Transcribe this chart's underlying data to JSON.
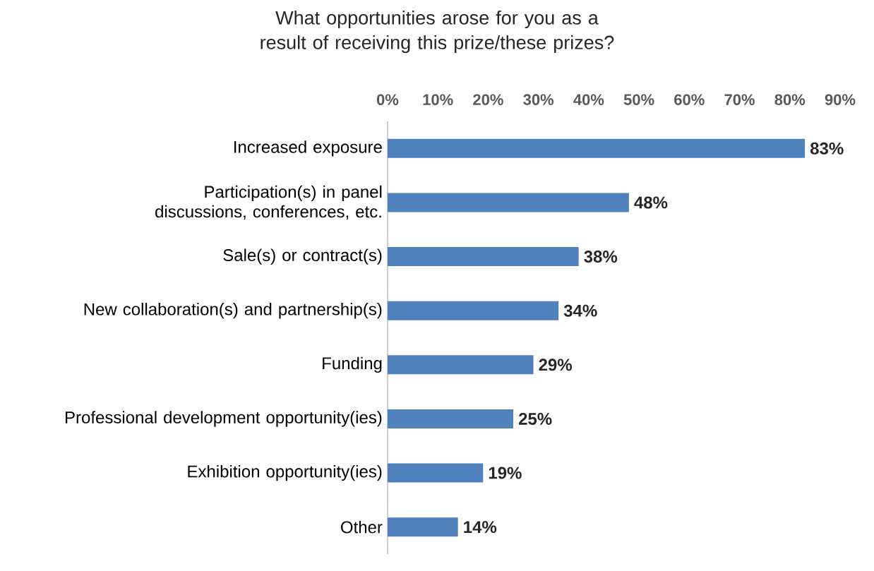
{
  "chart_data": {
    "type": "bar",
    "orientation": "horizontal",
    "title": "What opportunities arose for you as a result of receiving this prize/these prizes?",
    "categories": [
      "Increased exposure",
      "Participation(s) in panel discussions, conferences, etc.",
      "Sale(s) or contract(s)",
      "New collaboration(s) and partnership(s)",
      "Funding",
      "Professional development opportunity(ies)",
      "Exhibition opportunity(ies)",
      "Other"
    ],
    "values": [
      83,
      48,
      38,
      34,
      29,
      25,
      19,
      14
    ],
    "color": "#4f81bd",
    "value_labels": [
      "83%",
      "48%",
      "38%",
      "34%",
      "29%",
      "25%",
      "19%",
      "14%"
    ],
    "xlim": [
      0,
      90
    ],
    "xticks": [
      {
        "value": 0,
        "label": "0%"
      },
      {
        "value": 10,
        "label": "10%"
      },
      {
        "value": 20,
        "label": "20%"
      },
      {
        "value": 30,
        "label": "30%"
      },
      {
        "value": 40,
        "label": "40%"
      },
      {
        "value": 50,
        "label": "50%"
      },
      {
        "value": 60,
        "label": "60%"
      },
      {
        "value": 70,
        "label": "70%"
      },
      {
        "value": 80,
        "label": "80%"
      },
      {
        "value": 90,
        "label": "90%"
      }
    ]
  }
}
